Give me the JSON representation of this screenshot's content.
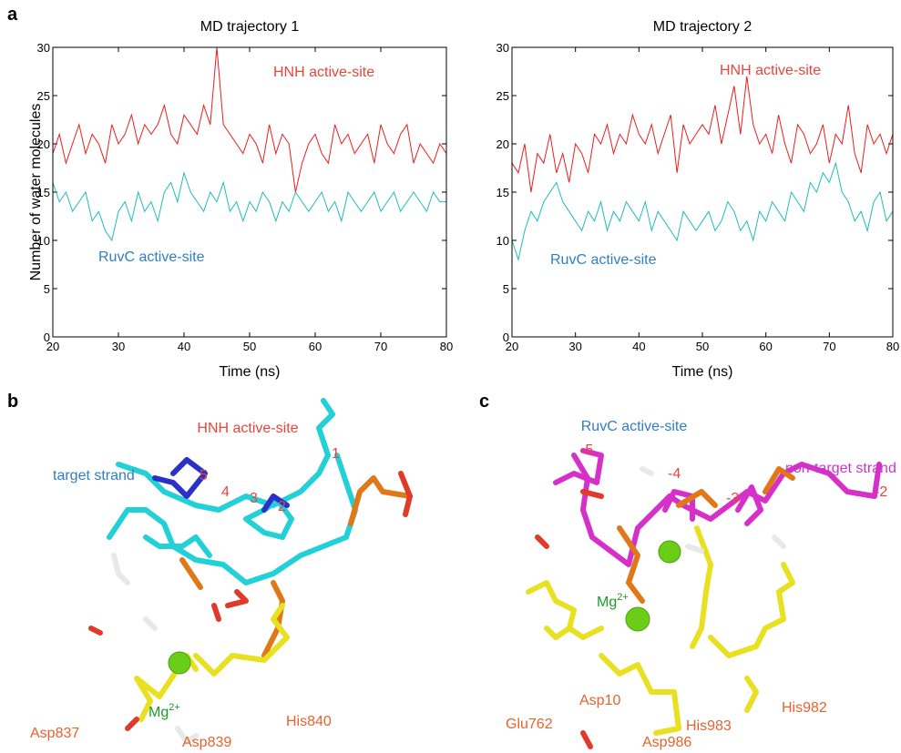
{
  "panel_labels": [
    "a",
    "b",
    "c"
  ],
  "chart_data": [
    {
      "type": "line",
      "title": "MD trajectory 1",
      "xlabel": "Time (ns)",
      "ylabel": "Number of water molecules",
      "xlim": [
        20,
        80
      ],
      "ylim": [
        0,
        30
      ],
      "xticks": [
        20,
        30,
        40,
        50,
        60,
        70,
        80
      ],
      "yticks": [
        0,
        5,
        10,
        15,
        20,
        25,
        30
      ],
      "grid": false,
      "x": [
        20,
        21,
        22,
        23,
        24,
        25,
        26,
        27,
        28,
        29,
        30,
        31,
        32,
        33,
        34,
        35,
        36,
        37,
        38,
        39,
        40,
        41,
        42,
        43,
        44,
        45,
        46,
        47,
        48,
        49,
        50,
        51,
        52,
        53,
        54,
        55,
        56,
        57,
        58,
        59,
        60,
        61,
        62,
        63,
        64,
        65,
        66,
        67,
        68,
        69,
        70,
        71,
        72,
        73,
        74,
        75,
        76,
        77,
        78,
        79,
        80
      ],
      "series": [
        {
          "name": "HNH active-site",
          "color": "#ee1c1c",
          "label_color": "#e8453c",
          "values": [
            19,
            21,
            18,
            20,
            22,
            19,
            21,
            20,
            18,
            22,
            20,
            21,
            23,
            20,
            22,
            21,
            22,
            24,
            21,
            20,
            23,
            22,
            21,
            24,
            22,
            30,
            22,
            21,
            20,
            19,
            21,
            20,
            18,
            22,
            19,
            21,
            20,
            15,
            18,
            20,
            21,
            19,
            18,
            22,
            20,
            21,
            19,
            20,
            21,
            18,
            22,
            20,
            19,
            21,
            22,
            18,
            20,
            19,
            18,
            20,
            19
          ]
        },
        {
          "name": "RuvC active-site",
          "color": "#1fbcbc",
          "label_color": "#2f7fc1",
          "values": [
            16,
            14,
            15,
            13,
            14,
            15,
            12,
            13,
            11,
            10,
            13,
            14,
            12,
            15,
            13,
            14,
            12,
            15,
            16,
            14,
            17,
            15,
            14,
            13,
            15,
            14,
            16,
            13,
            14,
            12,
            14,
            13,
            15,
            14,
            12,
            14,
            13,
            15,
            14,
            13,
            14,
            15,
            13,
            14,
            12,
            15,
            14,
            13,
            14,
            15,
            13,
            14,
            15,
            13,
            14,
            15,
            14,
            13,
            15,
            14,
            14
          ]
        }
      ]
    },
    {
      "type": "line",
      "title": "MD trajectory 2",
      "xlabel": "Time (ns)",
      "xlim": [
        20,
        80
      ],
      "ylim": [
        0,
        30
      ],
      "xticks": [
        20,
        30,
        40,
        50,
        60,
        70,
        80
      ],
      "yticks": [
        0,
        5,
        10,
        15,
        20,
        25,
        30
      ],
      "grid": false,
      "x": [
        20,
        21,
        22,
        23,
        24,
        25,
        26,
        27,
        28,
        29,
        30,
        31,
        32,
        33,
        34,
        35,
        36,
        37,
        38,
        39,
        40,
        41,
        42,
        43,
        44,
        45,
        46,
        47,
        48,
        49,
        50,
        51,
        52,
        53,
        54,
        55,
        56,
        57,
        58,
        59,
        60,
        61,
        62,
        63,
        64,
        65,
        66,
        67,
        68,
        69,
        70,
        71,
        72,
        73,
        74,
        75,
        76,
        77,
        78,
        79,
        80
      ],
      "series": [
        {
          "name": "HNH active-site",
          "color": "#ee1c1c",
          "label_color": "#e8453c",
          "values": [
            18,
            17,
            20,
            15,
            19,
            18,
            21,
            17,
            19,
            16,
            20,
            19,
            17,
            21,
            20,
            22,
            19,
            21,
            20,
            23,
            21,
            20,
            22,
            19,
            21,
            23,
            17,
            22,
            20,
            21,
            22,
            21,
            24,
            20,
            23,
            26,
            21,
            27,
            22,
            20,
            21,
            19,
            23,
            20,
            18,
            22,
            21,
            19,
            20,
            22,
            18,
            21,
            20,
            24,
            19,
            17,
            22,
            20,
            21,
            19,
            21
          ]
        },
        {
          "name": "RuvC active-site",
          "color": "#1fbcbc",
          "label_color": "#2f7fc1",
          "values": [
            10,
            8,
            11,
            13,
            12,
            14,
            15,
            16,
            14,
            13,
            12,
            11,
            13,
            12,
            14,
            11,
            13,
            12,
            14,
            13,
            12,
            14,
            11,
            13,
            12,
            11,
            10,
            13,
            12,
            11,
            12,
            13,
            11,
            12,
            14,
            13,
            11,
            12,
            10,
            13,
            12,
            14,
            13,
            12,
            15,
            14,
            13,
            16,
            15,
            17,
            16,
            18,
            15,
            14,
            12,
            13,
            11,
            14,
            15,
            12,
            13
          ]
        }
      ]
    }
  ],
  "structures": [
    {
      "title": "HNH active-site",
      "strand": "target strand",
      "nucleotides": [
        "5",
        "4",
        "3",
        "2",
        "1"
      ],
      "ion": {
        "base": "Mg",
        "charge": "2+"
      },
      "residues": [
        "Asp837",
        "Asp839",
        "His840"
      ]
    },
    {
      "title": "RuvC active-site",
      "strand": "non-target strand",
      "nucleotides": [
        "-5",
        "-4",
        "-3",
        "-2"
      ],
      "ion": {
        "base": "Mg",
        "charge": "2+"
      },
      "residues": [
        "Glu762",
        "Asp10",
        "His983",
        "Asp986",
        "His982"
      ]
    }
  ]
}
